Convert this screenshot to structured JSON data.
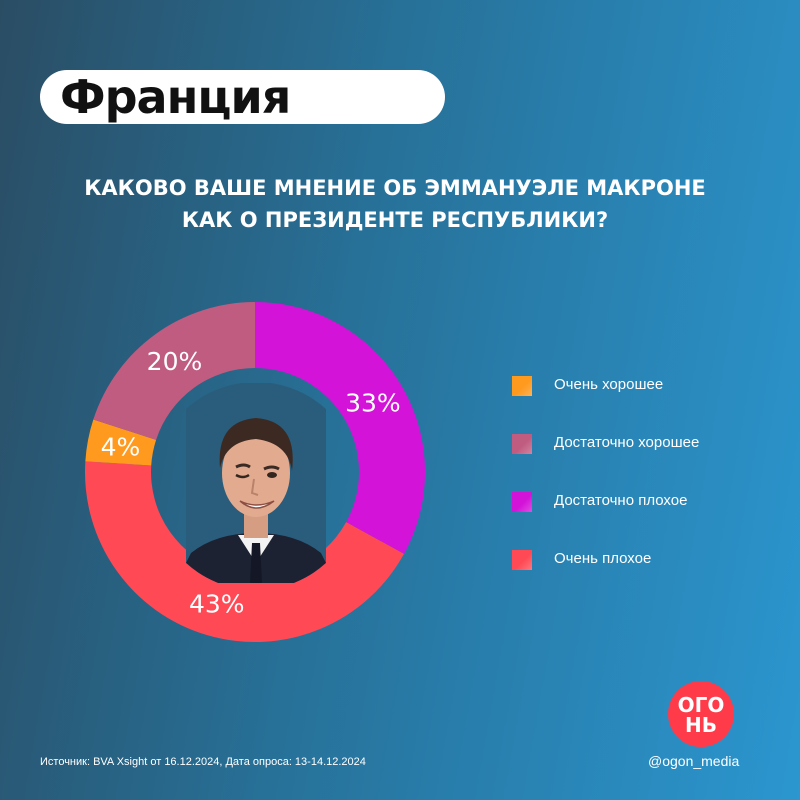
{
  "header": {
    "title": "Франция"
  },
  "question": {
    "line1": "КАКОВО ВАШЕ МНЕНИЕ ОБ ЭММАНУЭЛЕ МАКРОНЕ",
    "line2": "КАК О ПРЕЗИДЕНТЕ РЕСПУБЛИКИ?"
  },
  "chart_data": {
    "type": "pie",
    "title": "КАКОВО ВАШЕ МНЕНИЕ ОБ ЭММАНУЭЛЕ МАКРОНЕ КАК О ПРЕЗИДЕНТЕ РЕСПУБЛИКИ?",
    "categories": [
      "Очень хорошее",
      "Достаточно хорошее",
      "Достаточно плохое",
      "Очень плохое"
    ],
    "values": [
      4,
      20,
      33,
      43
    ],
    "labels": [
      "4%",
      "20%",
      "33%",
      "43%"
    ],
    "colors": [
      "#ff9a1e",
      "#c05c80",
      "#d314d8",
      "#ff4a56"
    ],
    "donut": true,
    "legend_position": "right"
  },
  "footer": {
    "source": "Источник: BVA Xsight от 16.12.2024, Дата опроса: 13-14.12.2024",
    "handle": "@ogon_media",
    "logo_line1": "ОГО",
    "logo_line2": "НЬ"
  },
  "icons": {
    "portrait": "macron-portrait",
    "logo": "ogon-logo-icon"
  }
}
